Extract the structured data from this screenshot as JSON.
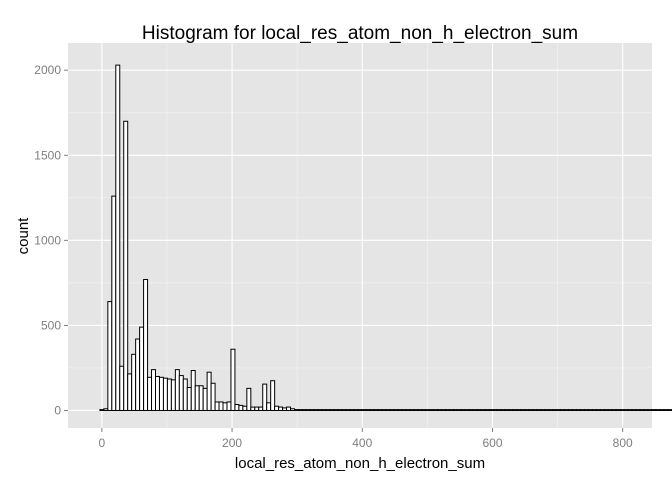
{
  "chart_data": {
    "type": "bar",
    "title": "Histogram for local_res_atom_non_h_electron_sum",
    "xlabel": "local_res_atom_non_h_electron_sum",
    "ylabel": "count",
    "xlim": [
      -52,
      845
    ],
    "ylim": [
      -103,
      2160
    ],
    "x_ticks": [
      0,
      200,
      400,
      600,
      800
    ],
    "x_tick_labels": [
      "0",
      "200",
      "400",
      "600",
      "800"
    ],
    "y_ticks": [
      0,
      500,
      1000,
      1500,
      2000
    ],
    "y_tick_labels": [
      "0",
      "500",
      "1000",
      "1500",
      "2000"
    ],
    "bin_width": 6.1,
    "bin_start": -3,
    "values": [
      5,
      10,
      640,
      1260,
      2030,
      260,
      1700,
      215,
      330,
      420,
      490,
      770,
      195,
      240,
      200,
      195,
      190,
      185,
      180,
      240,
      205,
      185,
      135,
      235,
      145,
      145,
      130,
      225,
      160,
      50,
      50,
      45,
      50,
      360,
      35,
      30,
      25,
      130,
      20,
      20,
      20,
      155,
      45,
      175,
      25,
      20,
      15,
      20,
      10,
      5,
      5,
      5,
      5,
      5,
      5,
      5,
      5,
      5,
      5,
      5,
      5,
      5,
      5,
      5,
      5,
      5,
      5,
      5,
      5,
      5,
      5,
      5,
      5,
      5,
      5,
      5,
      5,
      5,
      5,
      5,
      5,
      5,
      5,
      5,
      5,
      5,
      5,
      5,
      5,
      5,
      5,
      5,
      5,
      5,
      5,
      5,
      5,
      5,
      5,
      5,
      5,
      5,
      5,
      5,
      5,
      5,
      5,
      5,
      5,
      5,
      5,
      5,
      5,
      5,
      5,
      5,
      5,
      5,
      5,
      5,
      5,
      5,
      5,
      5,
      5,
      5,
      5,
      5,
      5,
      5,
      5,
      5,
      5,
      5,
      5,
      5,
      5,
      5,
      5,
      5,
      5,
      5,
      5,
      5,
      5,
      5,
      5,
      5,
      5,
      5,
      5,
      5,
      5,
      5,
      5,
      5,
      5,
      5,
      5,
      5,
      5,
      5,
      5,
      5,
      5,
      5,
      5,
      5,
      5,
      5,
      5,
      5,
      5,
      5,
      5,
      5
    ],
    "grid": true,
    "colors": {
      "panel_background": "#e5e5e5",
      "grid_major": "#ffffff",
      "grid_minor": "#f2f2f2",
      "bar_fill": "#ffffff",
      "bar_stroke": "#000000",
      "tick_label": "#7f7f7f",
      "title": "#000000"
    }
  }
}
